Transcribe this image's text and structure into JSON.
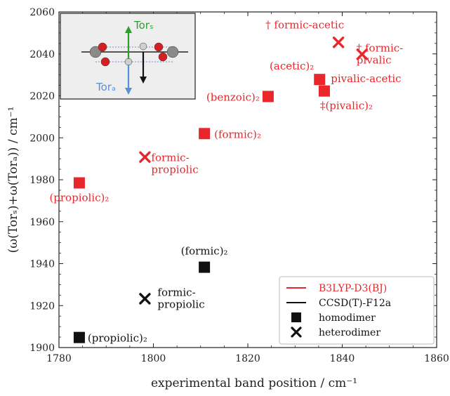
{
  "chart_data": {
    "type": "scatter",
    "xlabel": "experimental band position / cm⁻¹",
    "ylabel": "(ω(Torₛ)+ω(Torₐ)) / cm⁻¹",
    "xlim": [
      1780,
      1860
    ],
    "ylim": [
      1900,
      2060
    ],
    "x_ticks": [
      1780,
      1800,
      1820,
      1840,
      1860
    ],
    "y_ticks": [
      1900,
      1920,
      1940,
      1960,
      1980,
      2000,
      2020,
      2040,
      2060
    ],
    "grid": false,
    "colors": {
      "b3lyp": "#e8262b",
      "ccsd": "#111111"
    },
    "series": [
      {
        "name": "B3LYP-D3(BJ)",
        "color": "#e8262b",
        "points": [
          {
            "x": 1784.3,
            "y": 1978.5,
            "marker": "square",
            "label": "(propiolic)₂"
          },
          {
            "x": 1810.8,
            "y": 2002.0,
            "marker": "square",
            "label": "(formic)₂"
          },
          {
            "x": 1824.3,
            "y": 2019.7,
            "marker": "square",
            "label": "(benzoic)₂"
          },
          {
            "x": 1835.2,
            "y": 2027.8,
            "marker": "square",
            "label": "(acetic)₂"
          },
          {
            "x": 1836.2,
            "y": 2022.3,
            "marker": "square",
            "label": "‡(pivalic)₂"
          },
          {
            "x": 1798.2,
            "y": 1990.8,
            "marker": "cross",
            "label": "formic-\npropiolic"
          },
          {
            "x": 1839.2,
            "y": 2045.5,
            "marker": "cross",
            "label": "† formic-acetic"
          },
          {
            "x": 1844.2,
            "y": 2039.8,
            "marker": "cross",
            "label": "† formic-\npivalic"
          },
          {
            "x": 1835.5,
            "y": 2027.8,
            "marker": "none",
            "label": "pivalic-acetic"
          }
        ]
      },
      {
        "name": "CCSD(T)-F12a",
        "color": "#111111",
        "points": [
          {
            "x": 1784.3,
            "y": 1904.8,
            "marker": "square",
            "label": "(propiolic)₂"
          },
          {
            "x": 1810.8,
            "y": 1938.3,
            "marker": "square",
            "label": "(formic)₂"
          },
          {
            "x": 1798.2,
            "y": 1923.3,
            "marker": "cross",
            "label": "formic-\npropiolic"
          }
        ]
      }
    ],
    "legend": {
      "placement": "bottom-right",
      "entries": [
        {
          "label": "B3LYP-D3(BJ)",
          "kind": "line",
          "color": "#e8262b"
        },
        {
          "label": "CCSD(T)-F12a",
          "kind": "line",
          "color": "#111111"
        },
        {
          "label": "homodimer",
          "kind": "square",
          "color": "#111111"
        },
        {
          "label": "heterodimer",
          "kind": "cross",
          "color": "#111111"
        }
      ]
    },
    "inset": {
      "tor_s_label": "Torₛ",
      "tor_a_label": "Torₐ",
      "tor_s_color": "#2ca02c",
      "tor_a_color": "#5b8fd6"
    }
  }
}
